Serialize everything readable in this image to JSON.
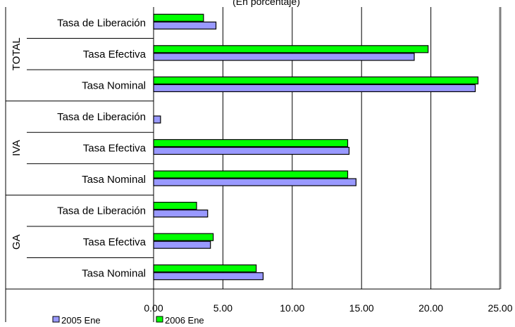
{
  "chart_data": {
    "type": "bar",
    "orientation": "horizontal",
    "title": "(En porcentaje)",
    "groups": [
      {
        "name": "TOTAL",
        "categories": [
          "Tasa de Liberación",
          "Tasa Efectiva",
          "Tasa Nominal"
        ]
      },
      {
        "name": "IVA",
        "categories": [
          "Tasa de Liberación",
          "Tasa Efectiva",
          "Tasa Nominal"
        ]
      },
      {
        "name": "GA",
        "categories": [
          "Tasa de Liberación",
          "Tasa Efectiva",
          "Tasa Nominal"
        ]
      }
    ],
    "series": [
      {
        "name": "2006 Ene",
        "color": "#00ff00",
        "values": [
          3.6,
          19.8,
          23.4,
          0.0,
          14.0,
          14.0,
          3.1,
          4.3,
          7.4
        ]
      },
      {
        "name": "2005 Ene",
        "color": "#9999ff",
        "values": [
          4.5,
          18.8,
          23.2,
          0.5,
          14.1,
          14.6,
          3.9,
          4.1,
          7.9
        ]
      }
    ],
    "xlim": [
      0,
      25
    ],
    "xticks": [
      "0.00",
      "5.00",
      "10.00",
      "15.00",
      "20.00",
      "25.00"
    ],
    "grid": true,
    "legend_position": "bottom",
    "legend": [
      "2005 Ene",
      "2006 Ene"
    ]
  }
}
